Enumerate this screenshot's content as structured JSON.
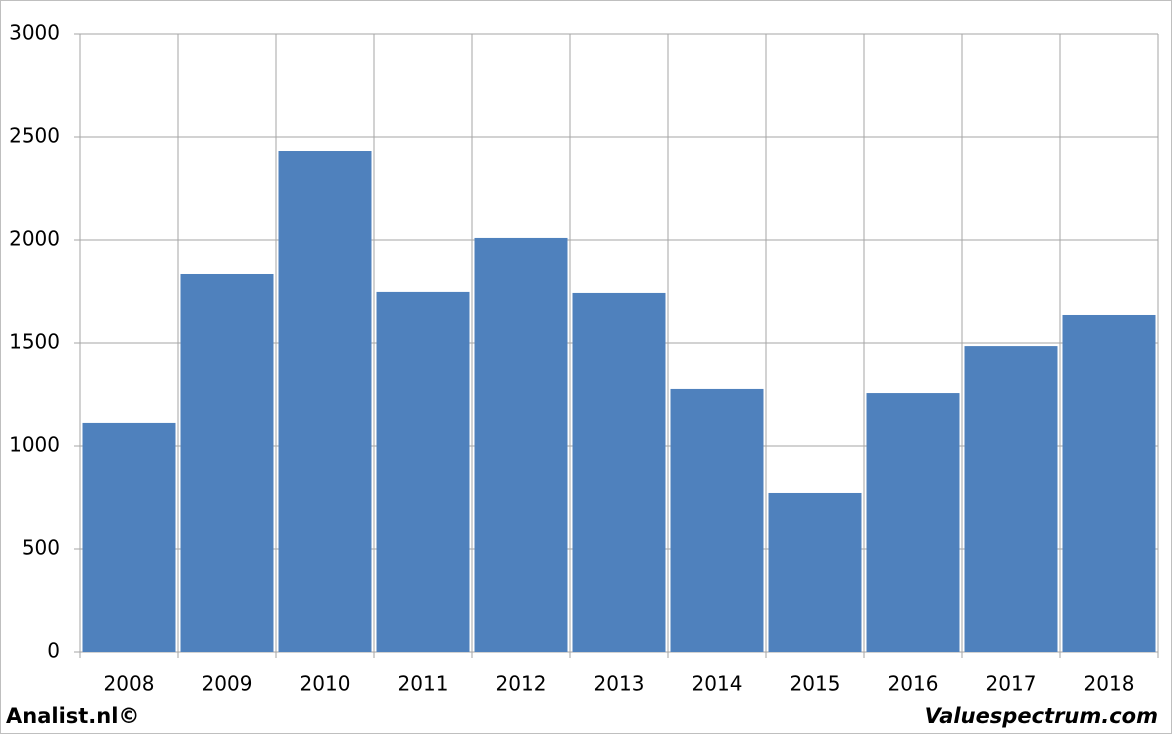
{
  "chart_data": {
    "type": "bar",
    "categories": [
      "2008",
      "2009",
      "2010",
      "2011",
      "2012",
      "2013",
      "2014",
      "2015",
      "2016",
      "2017",
      "2018"
    ],
    "values": [
      1112,
      1835,
      2432,
      1748,
      2010,
      1743,
      1277,
      772,
      1257,
      1485,
      1636
    ],
    "color": "#4f81bd",
    "ylim": [
      0,
      3000
    ],
    "yticks": [
      0,
      500,
      1000,
      1500,
      2000,
      2500,
      3000
    ],
    "grid": true,
    "source": "Analist.nl©",
    "credit": "Valuespectrum.com"
  }
}
